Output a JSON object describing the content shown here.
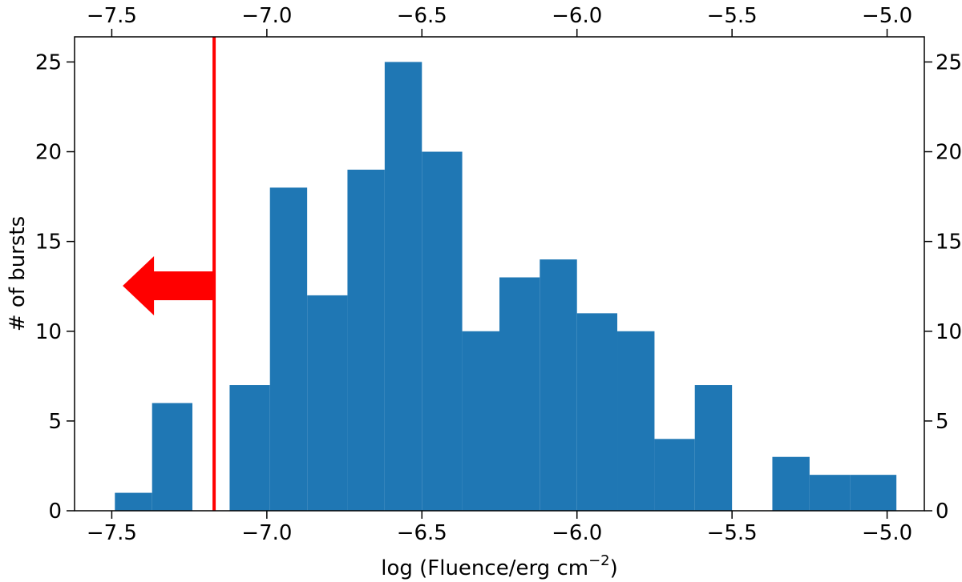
{
  "chart_data": {
    "type": "histogram",
    "xlabel": [
      "log (Fluence/erg cm",
      "−2",
      ")"
    ],
    "ylabel": "# of bursts",
    "bins": [
      -7.49,
      -7.37,
      -7.24,
      -7.12,
      -6.99,
      -6.87,
      -6.74,
      -6.62,
      -6.5,
      -6.37,
      -6.25,
      -6.12,
      -6.0,
      -5.87,
      -5.75,
      -5.62,
      -5.5,
      -5.37,
      -5.25,
      -5.12,
      -4.97
    ],
    "values": [
      1,
      6,
      0,
      7,
      18,
      12,
      19,
      25,
      20,
      10,
      13,
      14,
      11,
      10,
      4,
      7,
      0,
      3,
      2,
      2
    ],
    "color": "#1f77b4",
    "xlim": [
      -7.62,
      -4.88
    ],
    "ylim": [
      0,
      26.4
    ],
    "xticks": [
      {
        "value": -7.5,
        "label": "−7.5"
      },
      {
        "value": -7.0,
        "label": "−7.0"
      },
      {
        "value": -6.5,
        "label": "−6.5"
      },
      {
        "value": -6.0,
        "label": "−6.0"
      },
      {
        "value": -5.5,
        "label": "−5.5"
      },
      {
        "value": -5.0,
        "label": "−5.0"
      }
    ],
    "yticks": [
      0,
      5,
      10,
      15,
      20,
      25
    ],
    "threshold": {
      "x": -7.17,
      "color": "#ff0000"
    }
  }
}
